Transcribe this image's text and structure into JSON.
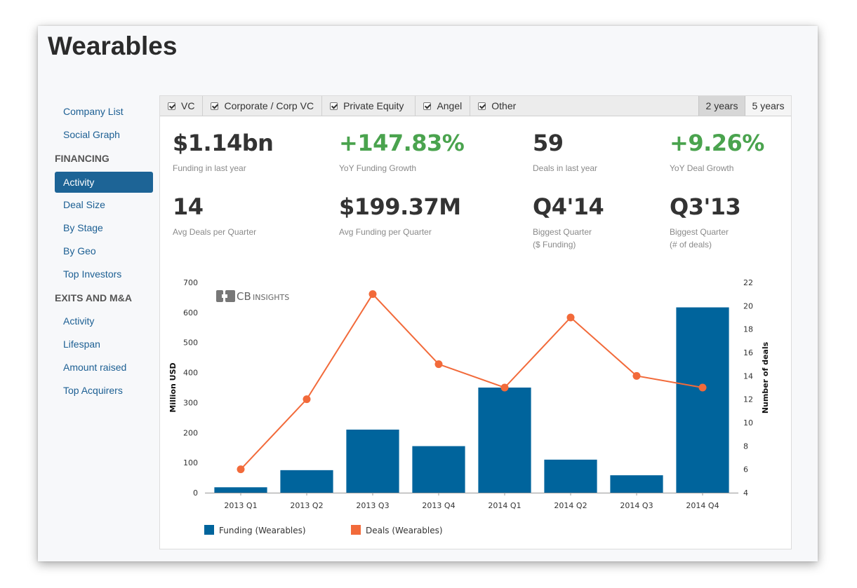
{
  "page_title": "Wearables",
  "sidebar": {
    "top_items": [
      {
        "label": "Company List"
      },
      {
        "label": "Social Graph"
      }
    ],
    "financing_header": "FINANCING",
    "financing_items": [
      {
        "label": "Activity",
        "active": true
      },
      {
        "label": "Deal Size"
      },
      {
        "label": "By Stage"
      },
      {
        "label": "By Geo"
      },
      {
        "label": "Top Investors"
      }
    ],
    "exits_header": "EXITS AND M&A",
    "exits_items": [
      {
        "label": "Activity"
      },
      {
        "label": "Lifespan"
      },
      {
        "label": "Amount raised"
      },
      {
        "label": "Top Acquirers"
      }
    ]
  },
  "filters": [
    {
      "label": "VC",
      "checked": true
    },
    {
      "label": "Corporate / Corp VC",
      "checked": true
    },
    {
      "label": "Private Equity",
      "checked": true
    },
    {
      "label": "Angel",
      "checked": true
    },
    {
      "label": "Other",
      "checked": true
    }
  ],
  "ranges": [
    {
      "label": "2 years",
      "selected": true
    },
    {
      "label": "5 years",
      "selected": false
    }
  ],
  "stats": [
    {
      "value": "$1.14bn",
      "label": "Funding in last year",
      "color": "#333333"
    },
    {
      "value": "+147.83%",
      "label": "YoY Funding Growth",
      "color": "#4aa34e"
    },
    {
      "value": "59",
      "label": "Deals in last year",
      "color": "#333333"
    },
    {
      "value": "+9.26%",
      "label": "YoY Deal Growth",
      "color": "#4aa34e"
    },
    {
      "value": "14",
      "label": "Avg Deals per Quarter",
      "color": "#333333"
    },
    {
      "value": "$199.37M",
      "label": "Avg Funding per Quarter",
      "color": "#333333"
    },
    {
      "value": "Q4'14",
      "label": "Biggest Quarter",
      "label2": "($ Funding)",
      "color": "#333333"
    },
    {
      "value": "Q3'13",
      "label": "Biggest Quarter",
      "label2": "(# of deals)",
      "color": "#333333"
    }
  ],
  "watermark": {
    "brand": "CB",
    "brand_suffix": "INSIGHTS"
  },
  "chart_data": {
    "type": "bar",
    "categories": [
      "2013 Q1",
      "2013 Q2",
      "2013 Q3",
      "2013 Q4",
      "2014 Q1",
      "2014 Q2",
      "2014 Q3",
      "2014 Q4"
    ],
    "series": [
      {
        "name": "Funding (Wearables)",
        "type": "bar",
        "axis": "left",
        "color": "#00649c",
        "values": [
          18,
          75,
          210,
          155,
          350,
          110,
          58,
          617
        ]
      },
      {
        "name": "Deals (Wearables)",
        "type": "line",
        "axis": "right",
        "color": "#f26a3a",
        "values": [
          6,
          12,
          21,
          15,
          13,
          19,
          14,
          13
        ]
      }
    ],
    "ylabel": "Million USD",
    "y2label": "Number of deals",
    "ylim": [
      0,
      700
    ],
    "yticks": [
      0,
      100,
      200,
      300,
      400,
      500,
      600,
      700
    ],
    "y2lim": [
      4,
      22
    ],
    "y2ticks": [
      4,
      6,
      8,
      10,
      12,
      14,
      16,
      18,
      20,
      22
    ],
    "legend_position": "bottom-left",
    "grid": false
  }
}
